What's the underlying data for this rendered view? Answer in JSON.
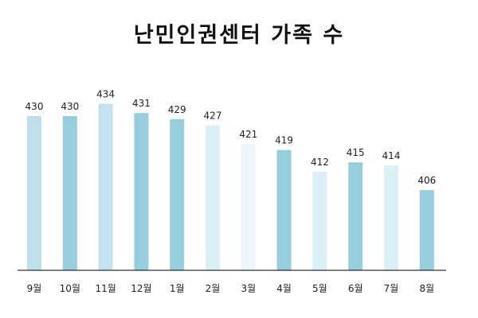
{
  "chart_data": {
    "type": "bar",
    "title": "난민인권센터 가족 수",
    "categories": [
      "9월",
      "10월",
      "11월",
      "12월",
      "1월",
      "2월",
      "3월",
      "4월",
      "5월",
      "6월",
      "7월",
      "8월"
    ],
    "values": [
      430,
      430,
      434,
      431,
      429,
      427,
      421,
      419,
      412,
      415,
      414,
      406
    ],
    "colors": [
      "#bfe0eb",
      "#96cede",
      "#c3e3ee",
      "#96cede",
      "#96cede",
      "#dbeff6",
      "#ecf6fa",
      "#96cede",
      "#dbeff6",
      "#96cede",
      "#dbeff6",
      "#96cede"
    ],
    "ylim": [
      380,
      438
    ],
    "grid": false,
    "legend": "none",
    "xlabel": "",
    "ylabel": ""
  }
}
